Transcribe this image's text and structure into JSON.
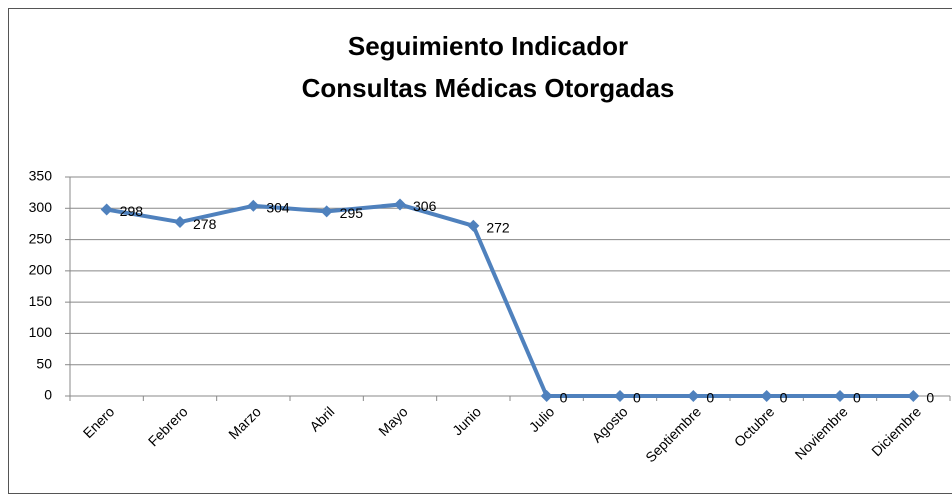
{
  "chart_data": {
    "type": "line",
    "title": [
      "Seguimiento Indicador",
      "Consultas Médicas Otorgadas"
    ],
    "categories": [
      "Enero",
      "Febrero",
      "Marzo",
      "Abril",
      "Mayo",
      "Junio",
      "Julio",
      "Agosto",
      "Septiembre",
      "Octubre",
      "Noviembre",
      "Diciembre"
    ],
    "values": [
      298,
      278,
      304,
      295,
      306,
      272,
      0,
      0,
      0,
      0,
      0,
      0
    ],
    "color": "#4f81bd",
    "ylim": [
      0,
      350
    ],
    "yticks": [
      0,
      50,
      100,
      150,
      200,
      250,
      300,
      350
    ],
    "grid": true
  }
}
